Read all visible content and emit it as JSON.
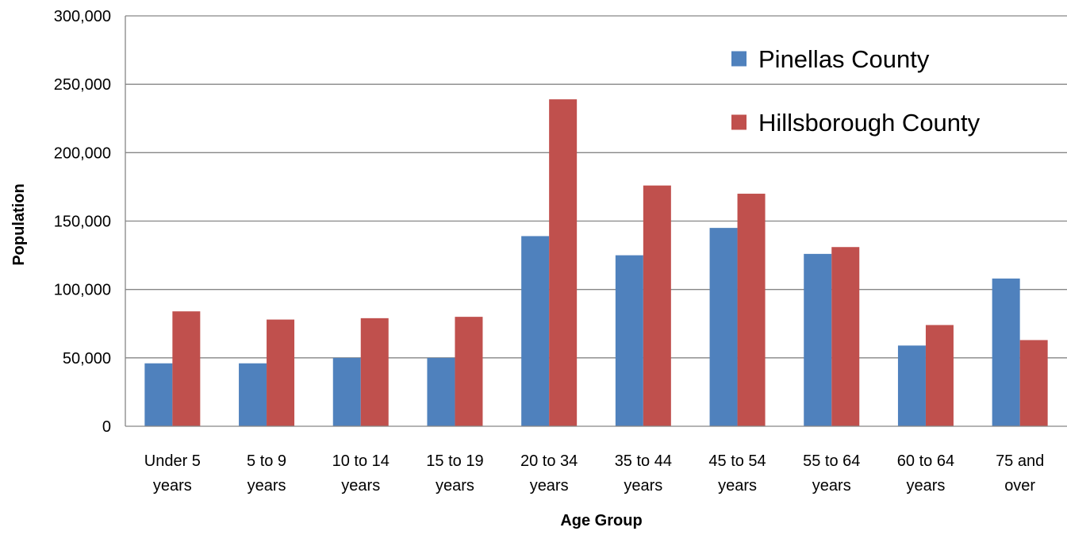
{
  "chart_data": {
    "type": "bar",
    "title": "",
    "xlabel": "Age Group",
    "ylabel": "Population",
    "ylim": [
      0,
      300000
    ],
    "yticks": [
      0,
      50000,
      100000,
      150000,
      200000,
      250000,
      300000
    ],
    "ytick_labels": [
      "0",
      "50,000",
      "100,000",
      "150,000",
      "200,000",
      "250,000",
      "300,000"
    ],
    "grid": "horizontal",
    "legend_position": "top-right",
    "categories": [
      [
        "Under 5",
        "years"
      ],
      [
        "5 to 9",
        "years"
      ],
      [
        "10 to 14",
        "years"
      ],
      [
        "15 to 19",
        "years"
      ],
      [
        "20 to 34",
        "years"
      ],
      [
        "35 to 44",
        "years"
      ],
      [
        "45 to 54",
        "years"
      ],
      [
        "55 to 64",
        "years"
      ],
      [
        "60 to 64",
        "years"
      ],
      [
        "75 and",
        "over"
      ]
    ],
    "series": [
      {
        "name": "Pinellas County",
        "color": "#4F81BD",
        "values": [
          46000,
          46000,
          50000,
          50000,
          139000,
          125000,
          145000,
          126000,
          59000,
          108000
        ]
      },
      {
        "name": "Hillsborough County",
        "color": "#C0504D",
        "values": [
          84000,
          78000,
          79000,
          80000,
          239000,
          176000,
          170000,
          131000,
          74000,
          63000
        ]
      }
    ]
  }
}
